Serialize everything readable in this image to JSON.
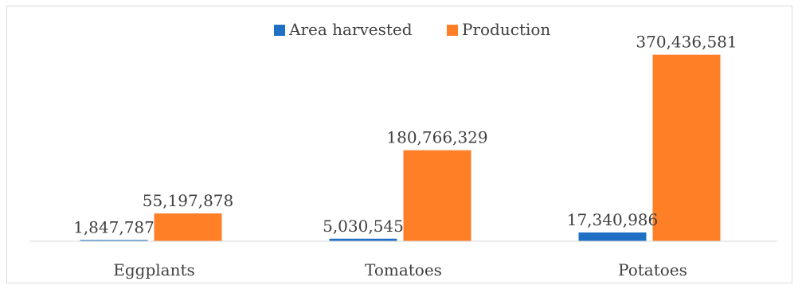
{
  "chart_data": {
    "type": "bar",
    "categories": [
      "Eggplants",
      "Tomatoes",
      "Potatoes"
    ],
    "series": [
      {
        "name": "Area harvested",
        "values": [
          1847787,
          5030545,
          17340986
        ],
        "labels": [
          "1,847,787",
          "5,030,545",
          "17,340,986"
        ],
        "color": "#1f6fc5"
      },
      {
        "name": "Production",
        "values": [
          55197878,
          180766329,
          370436581
        ],
        "labels": [
          "55,197,878",
          "180,766,329",
          "370,436,581"
        ],
        "color": "#ff7f27"
      }
    ],
    "ylim": [
      0,
      400000000
    ],
    "grid": false,
    "legend_position": "top-center",
    "title": "",
    "xlabel": "",
    "ylabel": ""
  }
}
